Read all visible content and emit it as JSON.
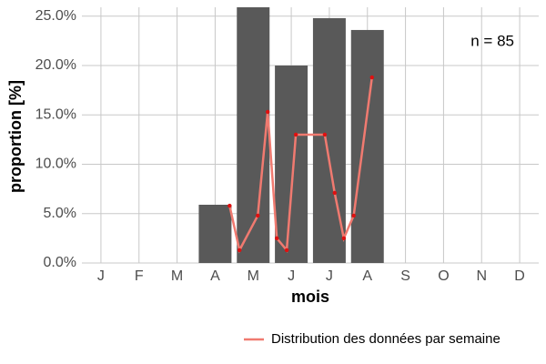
{
  "chart_data": {
    "type": "bar",
    "categories": [
      "J",
      "F",
      "M",
      "A",
      "M",
      "J",
      "J",
      "A",
      "S",
      "O",
      "N",
      "D"
    ],
    "values": [
      null,
      null,
      null,
      5.9,
      25.9,
      20.0,
      24.8,
      23.6,
      null,
      null,
      null,
      null
    ],
    "color": "#595959",
    "xlim": [
      0.5,
      12.5
    ],
    "ylim": [
      0,
      25.9
    ],
    "yticks": [
      {
        "value": 0,
        "label": "0.0%"
      },
      {
        "value": 5,
        "label": "5.0%"
      },
      {
        "value": 10,
        "label": "10.0%"
      },
      {
        "value": 15,
        "label": "15.0%"
      },
      {
        "value": 20,
        "label": "20.0%"
      },
      {
        "value": 25,
        "label": "25.0%"
      }
    ],
    "grid": true,
    "xlabel": "mois",
    "ylabel": "proportion [%]",
    "annotation": "n = 85",
    "legend": "bottom",
    "line": {
      "name": "Distribution des données par semaine",
      "color": "#f07a70",
      "point_color": "#e01010",
      "x": [
        4.38,
        4.64,
        5.12,
        5.38,
        5.62,
        5.88,
        6.12,
        6.88,
        7.14,
        7.38,
        7.64,
        8.12
      ],
      "values": [
        5.8,
        1.3,
        4.8,
        15.3,
        2.5,
        1.3,
        13.0,
        13.0,
        7.1,
        2.5,
        4.8,
        18.8
      ]
    }
  }
}
